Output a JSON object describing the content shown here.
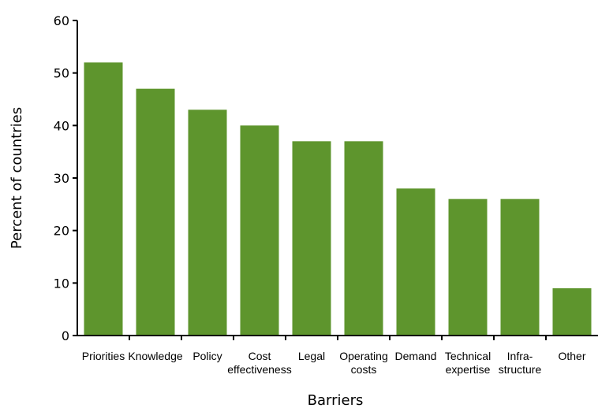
{
  "chart_data": {
    "type": "bar",
    "title": "",
    "xlabel": "Barriers",
    "ylabel": "Percent of countries",
    "ylim": [
      0,
      60
    ],
    "yticks": [
      0,
      10,
      20,
      30,
      40,
      50,
      60
    ],
    "grid": false,
    "legend": "none",
    "categories": [
      [
        "Priorities"
      ],
      [
        "Knowledge"
      ],
      [
        "Policy"
      ],
      [
        "Cost",
        "effectiveness"
      ],
      [
        "Legal"
      ],
      [
        "Operating",
        "costs"
      ],
      [
        "Demand"
      ],
      [
        "Technical",
        "expertise"
      ],
      [
        "Infra-",
        "structure"
      ],
      [
        "Other"
      ]
    ],
    "values": [
      52,
      47,
      43,
      40,
      37,
      37,
      28,
      26,
      26,
      9
    ],
    "bar_color": "#5e952d"
  }
}
